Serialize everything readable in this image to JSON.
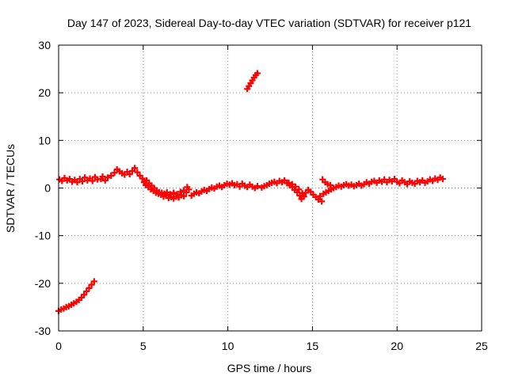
{
  "chart_data": {
    "type": "scatter",
    "title": "Day 147 of 2023, Sidereal Day-to-day VTEC variation (SDTVAR) for receiver p121",
    "xlabel": "GPS time / hours",
    "ylabel": "SDTVAR / TECUs",
    "xlim": [
      0,
      25
    ],
    "ylim": [
      -30,
      30
    ],
    "xticks": [
      0,
      5,
      10,
      15,
      20,
      25
    ],
    "yticks": [
      -30,
      -20,
      -10,
      0,
      10,
      20,
      30
    ],
    "grid": true,
    "marker": "plus",
    "color": "#ff0000",
    "series": [
      {
        "name": "main",
        "points": [
          [
            0.05,
            1.8
          ],
          [
            0.2,
            1.5
          ],
          [
            0.35,
            2.1
          ],
          [
            0.5,
            1.6
          ],
          [
            0.65,
            1.9
          ],
          [
            0.8,
            1.3
          ],
          [
            0.95,
            1.7
          ],
          [
            1.1,
            1.2
          ],
          [
            1.25,
            1.9
          ],
          [
            1.4,
            1.4
          ],
          [
            1.55,
            2.2
          ],
          [
            1.7,
            1.6
          ],
          [
            1.85,
            2.0
          ],
          [
            2.0,
            1.5
          ],
          [
            2.15,
            2.3
          ],
          [
            2.3,
            1.8
          ],
          [
            2.5,
            1.9
          ],
          [
            2.6,
            2.4
          ],
          [
            2.75,
            1.6
          ],
          [
            2.9,
            2.2
          ],
          [
            3.1,
            2.6
          ],
          [
            3.3,
            3.2
          ],
          [
            3.45,
            3.9
          ],
          [
            3.6,
            3.5
          ],
          [
            3.75,
            3.1
          ],
          [
            3.9,
            2.8
          ],
          [
            4.05,
            3.4
          ],
          [
            4.2,
            2.9
          ],
          [
            4.35,
            3.6
          ],
          [
            4.5,
            4.2
          ],
          [
            4.65,
            3.3
          ],
          [
            4.8,
            2.6
          ],
          [
            4.95,
            2.0
          ],
          [
            5.05,
            1.2
          ],
          [
            5.15,
            0.6
          ],
          [
            5.3,
            0.2
          ],
          [
            5.45,
            -0.3
          ],
          [
            5.6,
            -0.6
          ],
          [
            5.75,
            -1.0
          ],
          [
            5.9,
            -1.2
          ],
          [
            6.05,
            -1.4
          ],
          [
            6.2,
            -1.8
          ],
          [
            6.35,
            -1.6
          ],
          [
            6.5,
            -2.1
          ],
          [
            6.65,
            -1.9
          ],
          [
            6.8,
            -2.2
          ],
          [
            6.95,
            -1.8
          ],
          [
            7.1,
            -2.0
          ],
          [
            7.25,
            -1.5
          ],
          [
            7.4,
            -1.7
          ],
          [
            7.55,
            -0.9
          ],
          [
            7.7,
            -0.3
          ],
          [
            7.85,
            -1.6
          ],
          [
            8.0,
            -1.2
          ],
          [
            8.15,
            -0.9
          ],
          [
            8.3,
            -1.1
          ],
          [
            8.45,
            -0.7
          ],
          [
            8.6,
            -0.4
          ],
          [
            8.75,
            -0.6
          ],
          [
            8.9,
            -0.2
          ],
          [
            9.05,
            0.1
          ],
          [
            9.2,
            -0.1
          ],
          [
            9.35,
            0.3
          ],
          [
            9.5,
            0.5
          ],
          [
            9.65,
            0.2
          ],
          [
            9.8,
            0.6
          ],
          [
            9.95,
            0.9
          ],
          [
            10.1,
            0.7
          ],
          [
            10.25,
            1.0
          ],
          [
            10.4,
            0.6
          ],
          [
            10.55,
            0.8
          ],
          [
            10.7,
            0.3
          ],
          [
            10.85,
            0.9
          ],
          [
            11.0,
            0.5
          ],
          [
            11.15,
            0.2
          ],
          [
            11.3,
            0.7
          ],
          [
            11.45,
            0.3
          ],
          [
            11.6,
            0.0
          ],
          [
            11.75,
            0.4
          ],
          [
            12.0,
            0.1
          ],
          [
            12.15,
            0.4
          ],
          [
            12.3,
            0.6
          ],
          [
            12.45,
            0.9
          ],
          [
            12.6,
            1.1
          ],
          [
            12.75,
            1.3
          ],
          [
            12.9,
            1.0
          ],
          [
            13.05,
            1.5
          ],
          [
            13.2,
            1.2
          ],
          [
            13.35,
            1.6
          ],
          [
            13.5,
            1.0
          ],
          [
            13.65,
            0.6
          ],
          [
            13.8,
            0.2
          ],
          [
            13.95,
            -0.4
          ],
          [
            14.1,
            -0.9
          ],
          [
            14.25,
            -1.6
          ],
          [
            14.35,
            -2.3
          ],
          [
            14.5,
            -1.8
          ],
          [
            14.6,
            -1.0
          ],
          [
            14.75,
            -0.4
          ],
          [
            14.9,
            -0.8
          ],
          [
            15.05,
            -1.4
          ],
          [
            15.2,
            -1.9
          ],
          [
            15.35,
            -2.4
          ],
          [
            15.45,
            -1.7
          ],
          [
            15.55,
            -2.8
          ],
          [
            15.65,
            -1.2
          ],
          [
            15.8,
            -0.9
          ],
          [
            15.95,
            -0.6
          ],
          [
            16.1,
            -0.3
          ],
          [
            16.25,
            0.0
          ],
          [
            16.4,
            0.2
          ],
          [
            16.55,
            0.5
          ],
          [
            16.7,
            0.3
          ],
          [
            16.85,
            0.6
          ],
          [
            17.0,
            0.8
          ],
          [
            17.15,
            0.5
          ],
          [
            17.3,
            0.7
          ],
          [
            17.45,
            0.4
          ],
          [
            17.6,
            0.6
          ],
          [
            17.75,
            0.9
          ],
          [
            17.9,
            0.5
          ],
          [
            18.05,
            0.8
          ],
          [
            18.2,
            1.2
          ],
          [
            18.35,
            0.9
          ],
          [
            18.5,
            1.3
          ],
          [
            18.65,
            1.5
          ],
          [
            18.8,
            1.1
          ],
          [
            18.95,
            1.6
          ],
          [
            19.1,
            1.3
          ],
          [
            19.25,
            1.8
          ],
          [
            19.4,
            1.2
          ],
          [
            19.55,
            1.7
          ],
          [
            19.7,
            1.4
          ],
          [
            19.85,
            1.9
          ],
          [
            20.0,
            1.3
          ],
          [
            20.15,
            1.0
          ],
          [
            20.3,
            1.6
          ],
          [
            20.45,
            1.2
          ],
          [
            20.6,
            0.8
          ],
          [
            20.75,
            1.4
          ],
          [
            20.9,
            1.1
          ],
          [
            21.05,
            0.9
          ],
          [
            21.2,
            1.5
          ],
          [
            21.35,
            1.2
          ],
          [
            21.5,
            1.6
          ],
          [
            21.65,
            1.1
          ],
          [
            21.8,
            1.4
          ],
          [
            21.95,
            1.8
          ],
          [
            22.1,
            1.5
          ],
          [
            22.25,
            2.0
          ],
          [
            22.4,
            1.7
          ],
          [
            22.55,
            2.2
          ],
          [
            22.7,
            1.9
          ]
        ]
      },
      {
        "name": "overlap",
        "points": [
          [
            5.2,
            1.6
          ],
          [
            5.35,
            1.0
          ],
          [
            5.5,
            0.5
          ],
          [
            5.65,
            0.0
          ],
          [
            5.8,
            -0.5
          ],
          [
            5.95,
            -0.9
          ],
          [
            6.1,
            -1.0
          ],
          [
            6.25,
            -1.2
          ],
          [
            6.4,
            -0.9
          ],
          [
            6.6,
            -1.3
          ],
          [
            6.8,
            -1.0
          ],
          [
            7.0,
            -1.3
          ],
          [
            7.2,
            -0.8
          ],
          [
            7.4,
            -0.5
          ],
          [
            7.6,
            0.2
          ],
          [
            13.6,
            1.1
          ],
          [
            13.8,
            0.8
          ],
          [
            14.0,
            0.3
          ],
          [
            14.2,
            -0.3
          ],
          [
            14.4,
            -1.1
          ],
          [
            15.6,
            1.8
          ],
          [
            15.75,
            1.2
          ],
          [
            15.9,
            0.8
          ],
          [
            16.05,
            0.6
          ]
        ]
      },
      {
        "name": "early-arc",
        "points": [
          [
            0.0,
            -25.8
          ],
          [
            0.15,
            -25.5
          ],
          [
            0.3,
            -25.3
          ],
          [
            0.45,
            -25.0
          ],
          [
            0.6,
            -24.8
          ],
          [
            0.75,
            -24.5
          ],
          [
            0.9,
            -24.2
          ],
          [
            1.05,
            -23.9
          ],
          [
            1.2,
            -23.5
          ],
          [
            1.35,
            -23.0
          ],
          [
            1.5,
            -22.4
          ],
          [
            1.65,
            -21.7
          ],
          [
            1.8,
            -21.0
          ],
          [
            1.95,
            -20.3
          ],
          [
            2.1,
            -19.6
          ]
        ]
      },
      {
        "name": "short-arc",
        "points": [
          [
            11.15,
            20.8
          ],
          [
            11.25,
            21.4
          ],
          [
            11.35,
            22.0
          ],
          [
            11.45,
            22.6
          ],
          [
            11.55,
            23.2
          ],
          [
            11.65,
            23.7
          ],
          [
            11.75,
            24.1
          ]
        ]
      }
    ]
  }
}
